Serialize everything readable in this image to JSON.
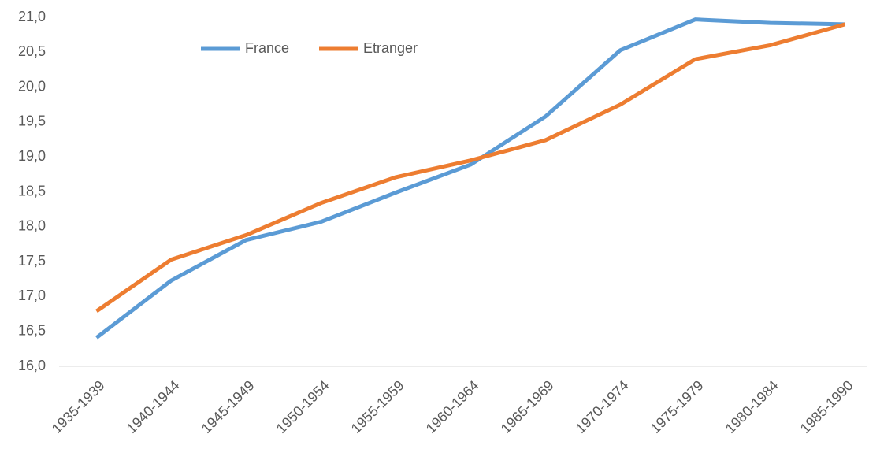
{
  "chart_data": {
    "type": "line",
    "categories": [
      "1935-1939",
      "1940-1944",
      "1945-1949",
      "1950-1954",
      "1955-1959",
      "1960-1964",
      "1965-1969",
      "1970-1974",
      "1975-1979",
      "1980-1984",
      "1985-1990"
    ],
    "series": [
      {
        "name": "France",
        "color": "#5b9bd5",
        "values": [
          16.41,
          17.23,
          17.81,
          18.07,
          18.49,
          18.89,
          19.58,
          20.53,
          20.97,
          20.92,
          20.9
        ]
      },
      {
        "name": "Etranger",
        "color": "#ed7d31",
        "values": [
          16.79,
          17.53,
          17.88,
          18.34,
          18.71,
          18.95,
          19.24,
          19.75,
          20.4,
          20.6,
          20.9
        ]
      }
    ],
    "ylim": [
      16,
      21
    ],
    "yticks": [
      {
        "value": 16,
        "label": "16,0"
      },
      {
        "value": 16.5,
        "label": "16,5"
      },
      {
        "value": 17,
        "label": "17,0"
      },
      {
        "value": 17.5,
        "label": "17,5"
      },
      {
        "value": 18,
        "label": "18,0"
      },
      {
        "value": 18.5,
        "label": "18,5"
      },
      {
        "value": 19,
        "label": "19,0"
      },
      {
        "value": 19.5,
        "label": "19,5"
      },
      {
        "value": 20,
        "label": "20,0"
      },
      {
        "value": 20.5,
        "label": "20,5"
      },
      {
        "value": 21,
        "label": "21,0"
      }
    ],
    "grid": false,
    "legend": "top"
  }
}
